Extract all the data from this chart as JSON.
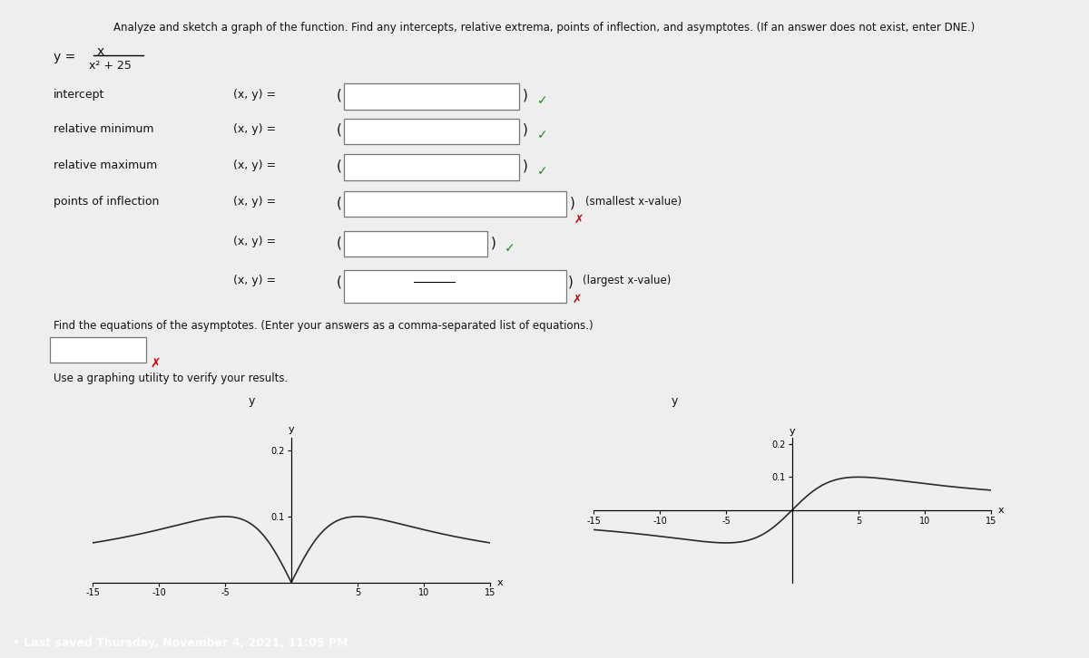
{
  "title": "Analyze and sketch a graph of the function. Find any intercepts, relative extrema, points of inflection, and asymptotes. (If an answer does not exist, enter DNE.)",
  "bg_color": "#eeeeee",
  "content_bg": "#f5f5f0",
  "graph_bg": "#efefef",
  "line_color": "#2a2a2a",
  "axis_color": "#111111",
  "check_color": "#228B22",
  "x_color": "#cc0000",
  "box_fill": "#ffffff",
  "box_edge": "#888888",
  "footer_color": "#1a5fa8",
  "footer_text": "Last saved Thursday, November 4, 2021, 11:05 PM",
  "graph1_ylim": [
    0.0,
    0.22
  ],
  "graph1_xlim": [
    -15,
    15
  ],
  "graph2_ylim": [
    -0.22,
    0.22
  ],
  "graph2_xlim": [
    -15,
    15
  ]
}
